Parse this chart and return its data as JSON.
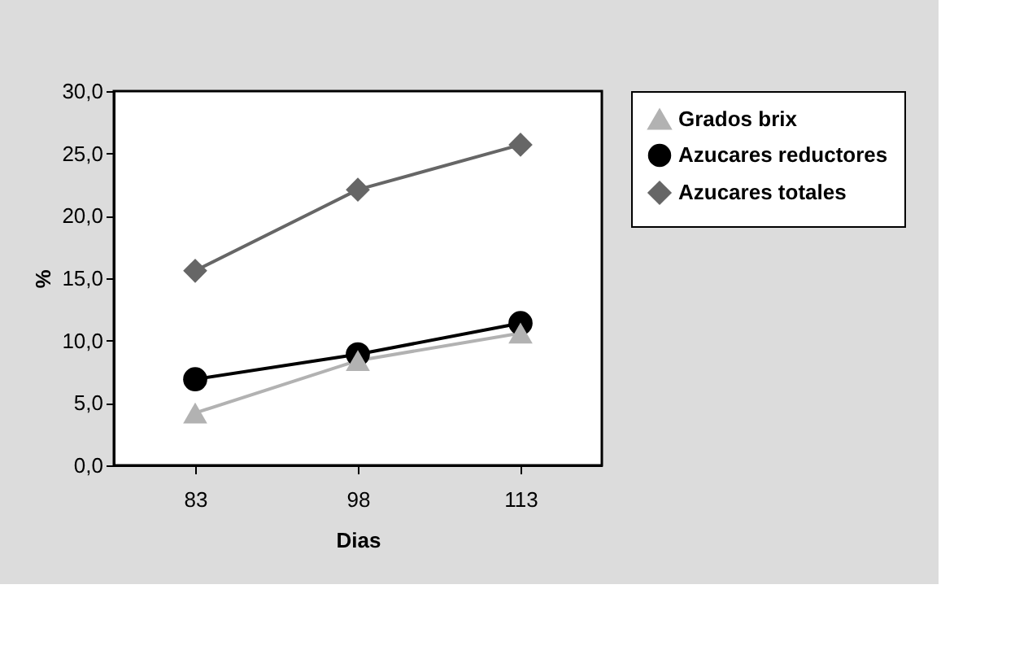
{
  "chart_data": {
    "type": "line",
    "xlabel": "Dias",
    "ylabel": "%",
    "categories": [
      "83",
      "98",
      "113"
    ],
    "series": [
      {
        "name": "Grados brix",
        "color": "#b2b2b2",
        "marker": "triangle",
        "values": [
          4.2,
          8.4,
          10.6
        ]
      },
      {
        "name": "Azucares reductores",
        "color": "#000000",
        "marker": "circle",
        "values": [
          6.9,
          8.9,
          11.4
        ]
      },
      {
        "name": "Azucares totales",
        "color": "#666666",
        "marker": "diamond",
        "values": [
          15.6,
          22.1,
          25.7
        ]
      }
    ],
    "ylim": [
      0,
      30
    ],
    "yticks": [
      {
        "value": 0,
        "label": "0,0"
      },
      {
        "value": 5,
        "label": "5,0"
      },
      {
        "value": 10,
        "label": "10,0"
      },
      {
        "value": 15,
        "label": "15,0"
      },
      {
        "value": 20,
        "label": "20,0"
      },
      {
        "value": 25,
        "label": "25,0"
      },
      {
        "value": 30,
        "label": "30,0"
      }
    ],
    "grid": false,
    "legend": "top right",
    "line_style": "solid"
  }
}
